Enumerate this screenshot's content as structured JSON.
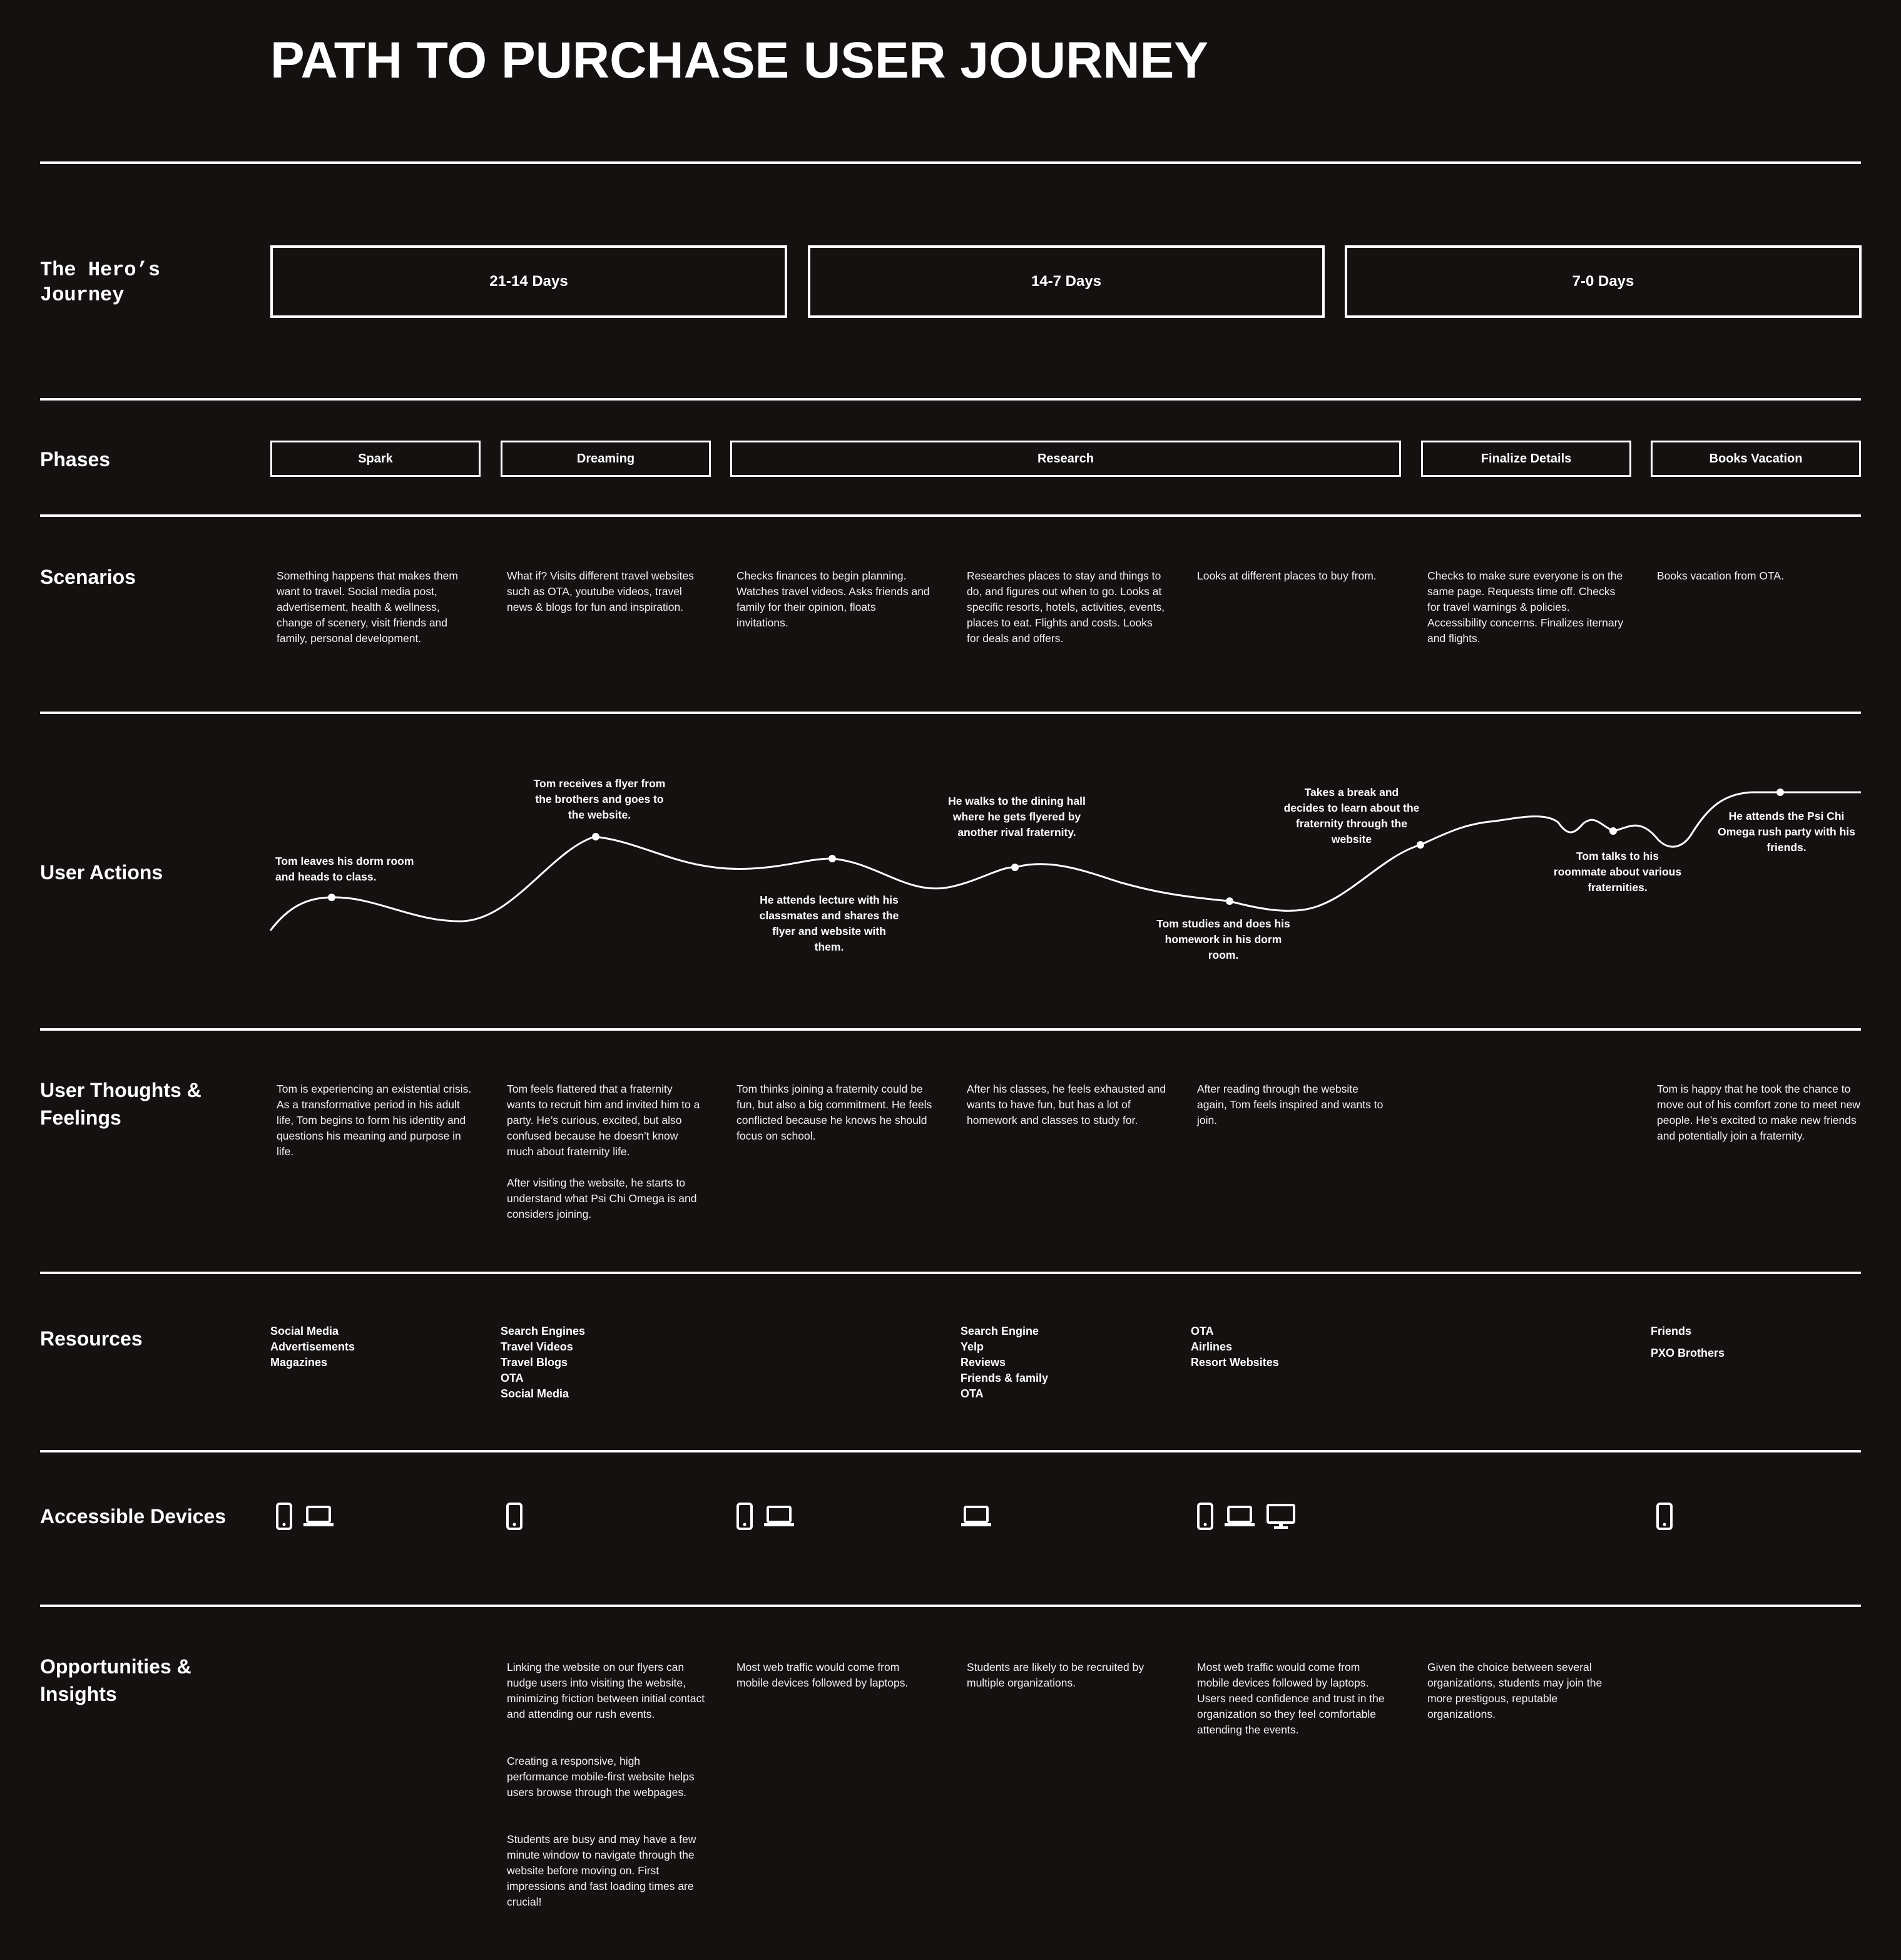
{
  "title": "PATH TO PURCHASE USER JOURNEY",
  "rows": {
    "hero": "The Hero’s Journey",
    "phases": "Phases",
    "scenarios": "Scenarios",
    "actions": "User Actions",
    "thoughts": "User Thoughts & Feelings",
    "resources": "Resources",
    "devices": "Accessible Devices",
    "opportunities": "Opportunities & Insights"
  },
  "days": [
    "21-14 Days",
    "14-7 Days",
    "7-0 Days"
  ],
  "phases": [
    "Spark",
    "Dreaming",
    "Research",
    "Finalize Details",
    "Books Vacation"
  ],
  "scenarios": [
    "Something happens that makes them want to travel. Social media post, advertisement, health & wellness, change of scenery, visit friends and family, personal development.",
    "What if? Visits different travel websites such as OTA, youtube videos, travel news & blogs for fun and inspiration.",
    "Checks finances to begin planning. Watches travel videos. Asks friends and family for their opinion, floats invitations.",
    "Researches places to stay and things to do, and figures out when to go. Looks at specific resorts, hotels, activities, events, places to eat. Flights and costs. Looks for deals and offers.",
    "Looks at different places to buy from.",
    "Checks to make sure everyone is on the same page. Requests time off. Checks for travel warnings & policies. Accessibility concerns. Finalizes iternary and flights.",
    "Books vacation from OTA."
  ],
  "actions": [
    "Tom leaves his dorm room and heads to class.",
    "Tom receives a flyer from the brothers and goes to the website.",
    "He attends lecture with his classmates and shares the flyer and website with them.",
    "He walks to the dining hall where he gets flyered by another rival fraternity.",
    "Tom studies and does his homework in his dorm room.",
    "Takes a break and decides to learn about the fraternity through the website",
    "Tom talks to his roommate about various fraternities.",
    "He attends the Psi Chi Omega rush party with his friends."
  ],
  "thoughts": [
    "Tom is experiencing an existential crisis. As a transformative period in his adult life, Tom begins to form his identity and questions his meaning and purpose in life.",
    "Tom feels flattered that a fraternity wants to recruit him and invited him to a party. He’s curious, excited, but also confused because he doesn’t know much about fraternity life.",
    "After visiting the website, he starts to understand what Psi Chi Omega is and considers joining.",
    "Tom thinks joining a fraternity could be fun, but also a big commitment. He feels conflicted because he knows he should focus on school.",
    "After his classes, he feels exhausted and wants to have fun, but has a lot of homework and classes to study for.",
    "After reading through the website again, Tom feels inspired and wants to join.",
    "Tom is happy that he took the chance to move out of his comfort zone to meet new people. He’s excited to make new friends and potentially join a fraternity."
  ],
  "resources": [
    [
      "Social Media",
      "Advertisements",
      "Magazines"
    ],
    [
      "Search Engines",
      "Travel Videos",
      "Travel Blogs",
      "OTA",
      "Social Media"
    ],
    [
      "Search Engine",
      "Yelp",
      "Reviews",
      "Friends & family",
      "OTA"
    ],
    [
      "OTA",
      "Airlines",
      "Resort Websites"
    ],
    [
      "Friends"
    ],
    [
      "PXO Brothers"
    ]
  ],
  "devices": [
    [
      "phone-icon",
      "laptop-icon"
    ],
    [
      "phone-icon"
    ],
    [
      "phone-icon",
      "laptop-icon"
    ],
    [
      "laptop-icon"
    ],
    [
      "phone-icon",
      "laptop-icon",
      "desktop-icon"
    ],
    [
      "phone-icon"
    ]
  ],
  "opportunities": [
    "Linking the website on our flyers can nudge users into visiting the website, minimizing friction between initial contact and attending our rush events.",
    "Creating a responsive, high performance mobile-first website helps users browse through the webpages.",
    "Students are busy and may have a few minute window to navigate through the website before moving on. First impressions and fast loading times are crucial!",
    "Most web traffic would come from mobile devices followed by laptops.",
    "Students are likely to be recruited by multiple organizations.",
    "Most web traffic would come from mobile devices followed by laptops. Users need confidence and trust in the organization so they feel comfortable attending the events.",
    "Given the choice between several organizations, students may join the more prestigous, reputable organizations."
  ],
  "colors": {
    "background": "#141110",
    "foreground": "#ffffff"
  }
}
